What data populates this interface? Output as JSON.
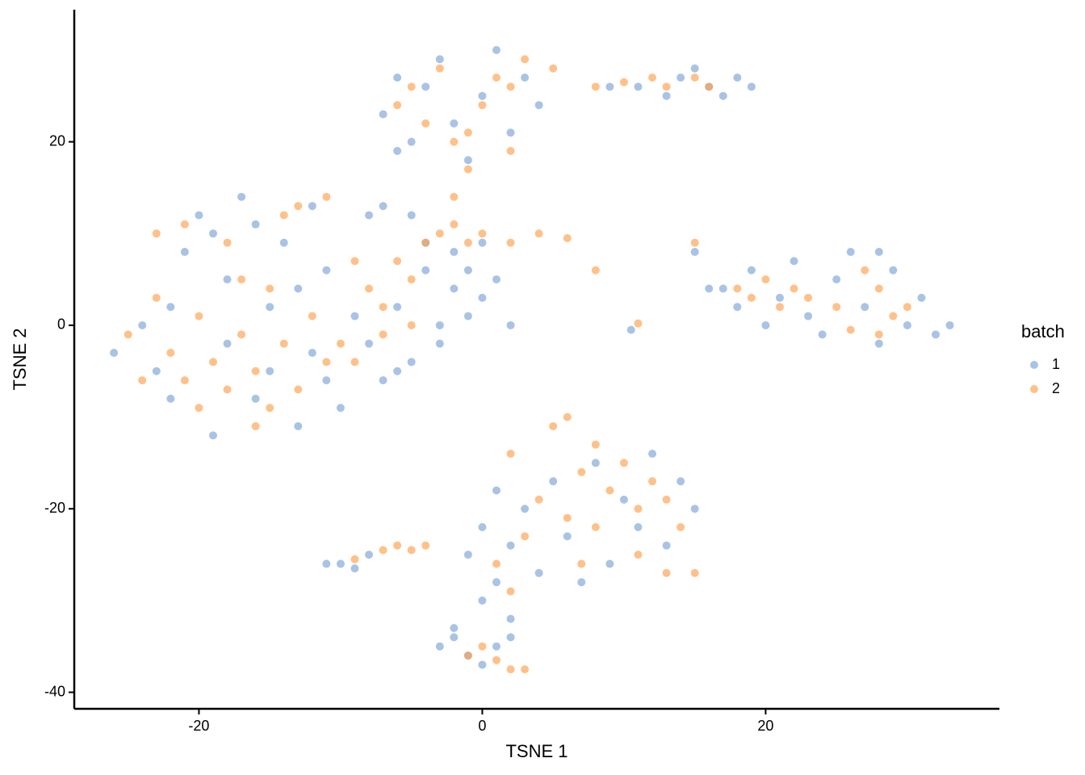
{
  "chart_data": {
    "type": "scatter",
    "x_label": "TSNE 1",
    "y_label": "TSNE 2",
    "xlim": [
      -28.8,
      36.5
    ],
    "ylim": [
      -41.8,
      34.4
    ],
    "xticks": [
      -20,
      0,
      20
    ],
    "yticks": [
      -40,
      -20,
      0,
      20
    ],
    "legend_title": "batch",
    "legend_position": "right",
    "series": [
      {
        "name": "1",
        "color": "#7ba3d6",
        "x": [
          -26,
          -24,
          -23,
          -22,
          -21,
          -20,
          -19,
          -18,
          -17,
          -16,
          -15,
          -14,
          -13,
          -12,
          -11,
          -10,
          -9,
          -8,
          -22,
          -18,
          -15,
          -13,
          -11,
          -19,
          -16,
          -12,
          -8,
          -7,
          -6,
          -5,
          -4,
          -3,
          -2,
          -1,
          0,
          1,
          -1,
          -3,
          -6,
          -4,
          -2,
          0,
          2,
          -5,
          -7,
          -7,
          -6,
          -5,
          -4,
          -3,
          -2,
          -1,
          0,
          1,
          2,
          3,
          4,
          -6,
          9,
          11,
          13,
          14,
          15,
          16,
          17,
          18,
          19,
          17,
          18,
          19,
          20,
          21,
          22,
          23,
          24,
          25,
          26,
          27,
          28,
          29,
          30,
          31,
          32,
          33,
          28,
          -1,
          0,
          0,
          1,
          1,
          2,
          2,
          3,
          4,
          5,
          6,
          7,
          8,
          9,
          10,
          11,
          12,
          13,
          14,
          15,
          -11,
          -10,
          -9,
          -8,
          -3,
          -2,
          -1,
          0,
          1,
          2,
          -2,
          10.5,
          15,
          16
        ],
        "values": [
          -3,
          0,
          -5,
          2,
          8,
          12,
          -12,
          5,
          14,
          -8,
          2,
          9,
          -11,
          -3,
          6,
          -9,
          1,
          12,
          -8,
          -2,
          -5,
          4,
          -6,
          10,
          11,
          13,
          -2,
          -6,
          2,
          -4,
          6,
          0,
          4,
          6,
          3,
          5,
          1,
          -2,
          -5,
          9,
          8,
          9,
          0,
          12,
          13,
          23,
          27,
          20,
          26,
          29,
          22,
          18,
          25,
          30,
          21,
          27,
          24,
          19,
          26,
          26,
          25,
          27,
          28,
          26,
          25,
          27,
          26,
          4,
          2,
          6,
          0,
          3,
          7,
          1,
          -1,
          5,
          8,
          2,
          -2,
          6,
          0,
          3,
          -1,
          0,
          8,
          -25,
          -30,
          -22,
          -28,
          -18,
          -32,
          -24,
          -20,
          -27,
          -17,
          -23,
          -28,
          -15,
          -26,
          -19,
          -22,
          -14,
          -24,
          -17,
          -20,
          -26,
          -26,
          -26.5,
          -25,
          -35,
          -34,
          -36,
          -37,
          -35,
          -34,
          -33,
          -0.5,
          8,
          4
        ]
      },
      {
        "name": "2",
        "color": "#fd9f4c",
        "x": [
          -25,
          -24,
          -23,
          -22,
          -21,
          -20,
          -20,
          -19,
          -18,
          -18,
          -17,
          -16,
          -15,
          -15,
          -14,
          -13,
          -13,
          -12,
          -11,
          -11,
          -10,
          -9,
          -23,
          -17,
          -14,
          -16,
          -21,
          -8,
          -7,
          -6,
          -5,
          -4,
          -3,
          -2,
          -1,
          0,
          2,
          4,
          6,
          -7,
          -5,
          -9,
          -6,
          -5,
          -4,
          -3,
          -2,
          -1,
          0,
          1,
          2,
          3,
          2,
          -1,
          -2,
          5,
          8,
          10,
          12,
          13,
          15,
          16,
          18,
          19,
          20,
          21,
          22,
          23,
          25,
          27,
          28,
          29,
          30,
          28,
          26,
          15,
          1,
          2,
          3,
          4,
          5,
          6,
          6,
          7,
          8,
          8,
          9,
          10,
          11,
          12,
          13,
          14,
          11,
          7,
          13,
          15,
          2,
          -9,
          -7,
          -6,
          -5,
          -4,
          -1,
          0,
          1,
          2,
          3,
          11,
          8
        ],
        "values": [
          -1,
          -6,
          3,
          -3,
          11,
          -9,
          1,
          -4,
          -7,
          9,
          -1,
          -5,
          -9,
          4,
          -2,
          13,
          -7,
          1,
          14,
          -4,
          -2,
          7,
          10,
          5,
          12,
          -11,
          -6,
          4,
          2,
          7,
          5,
          9,
          10,
          11,
          9,
          10,
          9,
          10,
          9.5,
          -1,
          0,
          -4,
          24,
          26,
          22,
          28,
          20,
          21,
          24,
          27,
          26,
          29,
          19,
          17,
          14,
          28,
          26,
          26.5,
          27,
          26,
          27,
          26,
          4,
          3,
          5,
          2,
          4,
          3,
          2,
          6,
          4,
          1,
          2,
          -1,
          -0.5,
          9,
          -26,
          -29,
          -23,
          -19,
          -11,
          -21,
          -10,
          -16,
          -13,
          -22,
          -18,
          -15,
          -20,
          -17,
          -19,
          -22,
          -25,
          -26,
          -27,
          -27,
          -14,
          -25.5,
          -24.5,
          -24,
          -24.5,
          -24,
          -36,
          -35,
          -36.5,
          -37.5,
          -37.5,
          0.2,
          6
        ]
      }
    ]
  }
}
